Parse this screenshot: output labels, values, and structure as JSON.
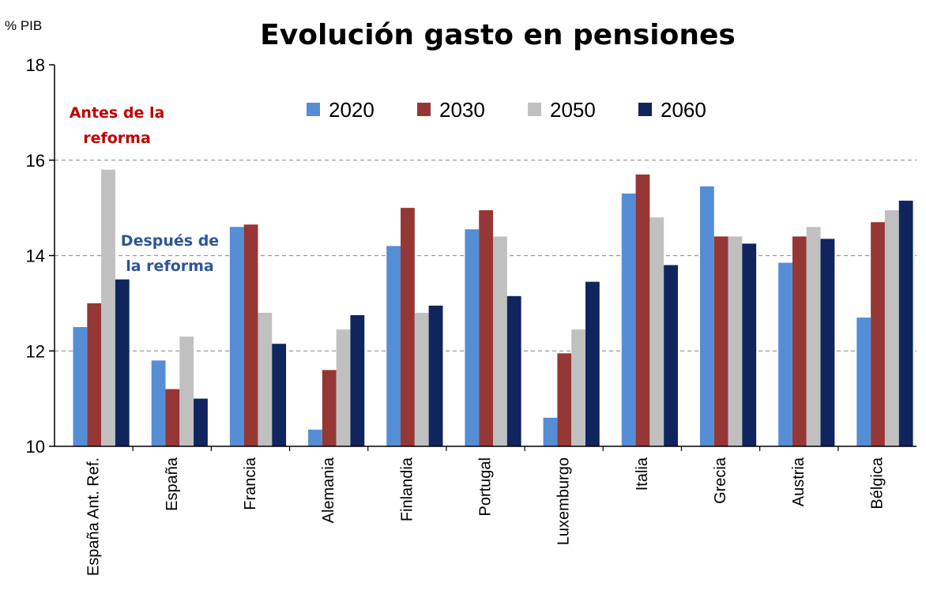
{
  "chart_data": {
    "type": "bar",
    "title": "Evolución gasto en pensiones",
    "ylabel": "% PIB",
    "xlabel": "",
    "ylim": [
      10,
      18
    ],
    "yticks": [
      10,
      12,
      14,
      16,
      18
    ],
    "grid": true,
    "legend_position": "top-center",
    "categories": [
      "España Ant. Ref.",
      "España",
      "Francia",
      "Alemania",
      "Finlandia",
      "Portugal",
      "Luxemburgo",
      "Italia",
      "Grecia",
      "Austria",
      "Bélgica"
    ],
    "series": [
      {
        "name": "2020",
        "color": "#558ED5",
        "values": [
          12.5,
          11.8,
          14.6,
          10.35,
          14.2,
          14.55,
          10.6,
          15.3,
          15.45,
          13.85,
          12.7
        ]
      },
      {
        "name": "2030",
        "color": "#953735",
        "values": [
          13.0,
          11.2,
          14.65,
          11.6,
          15.0,
          14.95,
          11.95,
          15.7,
          14.4,
          14.4,
          14.7
        ]
      },
      {
        "name": "2050",
        "color": "#C0C0C0",
        "values": [
          15.8,
          12.3,
          12.8,
          12.45,
          12.8,
          14.4,
          12.45,
          14.8,
          14.4,
          14.6,
          14.95
        ]
      },
      {
        "name": "2060",
        "color": "#10245E",
        "values": [
          13.5,
          11.0,
          12.15,
          12.75,
          12.95,
          13.15,
          13.45,
          13.8,
          14.25,
          14.35,
          15.15
        ]
      }
    ],
    "annotations": [
      {
        "lines": [
          "Antes de la",
          "reforma"
        ],
        "color": "#C00000"
      },
      {
        "lines": [
          "Después de",
          "la reforma"
        ],
        "color": "#2E5597"
      }
    ]
  }
}
